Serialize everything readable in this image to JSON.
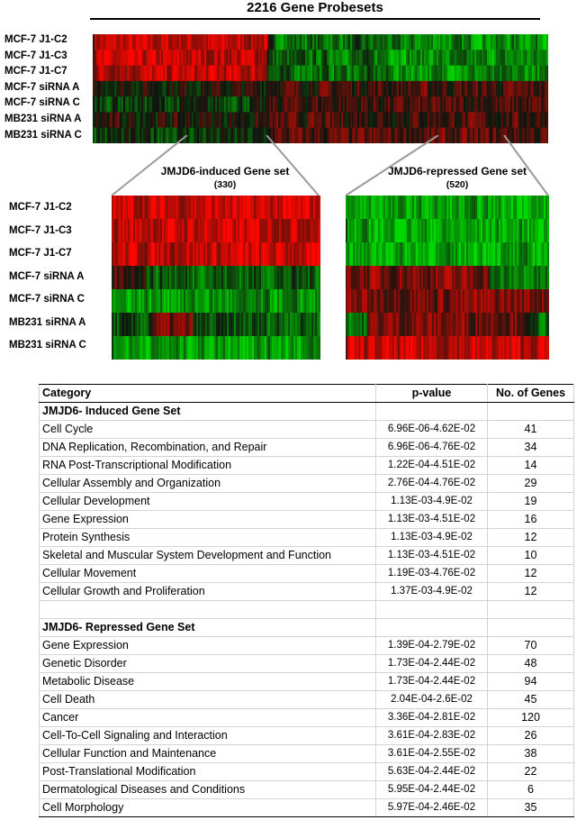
{
  "figure": {
    "top_heatmap": {
      "title": "2216 Gene Probesets",
      "rows": [
        "MCF-7 J1-C2",
        "MCF-7 J1-C3",
        "MCF-7 J1-C7",
        "MCF-7 siRNA A",
        "MCF-7 siRNA C",
        "MB231 siRNA A",
        "MB231 siRNA C"
      ]
    },
    "induced_panel": {
      "title": "JMJD6-induced Gene set",
      "count": "(330)",
      "rows": [
        "MCF-7 J1-C2",
        "MCF-7 J1-C3",
        "MCF-7 J1-C7",
        "MCF-7 siRNA A",
        "MCF-7 siRNA C",
        "MB231 siRNA A",
        "MB231 siRNA C"
      ]
    },
    "repressed_panel": {
      "title": "JMJD6-repressed Gene set",
      "count": "(520)"
    },
    "colors": {
      "up": "#e00000",
      "down": "#00c000",
      "neutral": "#101010"
    }
  },
  "table": {
    "headers": {
      "category": "Category",
      "pvalue": "p-value",
      "genes": "No. of Genes"
    },
    "induced_heading": "JMJD6- Induced Gene Set",
    "induced_rows": [
      {
        "category": "Cell Cycle",
        "pvalue": "6.96E-06-4.62E-02",
        "genes": "41"
      },
      {
        "category": "DNA Replication, Recombination, and Repair",
        "pvalue": "6.96E-06-4.76E-02",
        "genes": "34"
      },
      {
        "category": "RNA Post-Transcriptional Modification",
        "pvalue": "1.22E-04-4.51E-02",
        "genes": "14"
      },
      {
        "category": "Cellular Assembly and Organization",
        "pvalue": "2.76E-04-4.76E-02",
        "genes": "29"
      },
      {
        "category": "Cellular Development",
        "pvalue": "1.13E-03-4.9E-02",
        "genes": "19"
      },
      {
        "category": "Gene Expression",
        "pvalue": "1.13E-03-4.51E-02",
        "genes": "16"
      },
      {
        "category": "Protein Synthesis",
        "pvalue": "1.13E-03-4.9E-02",
        "genes": "12"
      },
      {
        "category": "Skeletal and Muscular System Development and Function",
        "pvalue": "1.13E-03-4.51E-02",
        "genes": "10"
      },
      {
        "category": "Cellular Movement",
        "pvalue": "1.19E-03-4.76E-02",
        "genes": "12"
      },
      {
        "category": "Cellular Growth and Proliferation",
        "pvalue": "1.37E-03-4.9E-02",
        "genes": "12"
      }
    ],
    "repressed_heading": "JMJD6- Repressed Gene Set",
    "repressed_rows": [
      {
        "category": "Gene Expression",
        "pvalue": "1.39E-04-2.79E-02",
        "genes": "70"
      },
      {
        "category": "Genetic Disorder",
        "pvalue": "1.73E-04-2.44E-02",
        "genes": "48"
      },
      {
        "category": "Metabolic Disease",
        "pvalue": "1.73E-04-2.44E-02",
        "genes": "94"
      },
      {
        "category": "Cell Death",
        "pvalue": "2.04E-04-2.6E-02",
        "genes": "45"
      },
      {
        "category": "Cancer",
        "pvalue": "3.36E-04-2.81E-02",
        "genes": "120"
      },
      {
        "category": "Cell-To-Cell Signaling and Interaction",
        "pvalue": "3.61E-04-2.83E-02",
        "genes": "26"
      },
      {
        "category": "Cellular Function and Maintenance",
        "pvalue": "3.61E-04-2.55E-02",
        "genes": "38"
      },
      {
        "category": "Post-Translational Modification",
        "pvalue": "5.63E-04-2.44E-02",
        "genes": "22"
      },
      {
        "category": "Dermatological Diseases and Conditions",
        "pvalue": "5.95E-04-2.44E-02",
        "genes": "6"
      },
      {
        "category": "Cell Morphology",
        "pvalue": "5.97E-04-2.46E-02",
        "genes": "35"
      }
    ]
  }
}
